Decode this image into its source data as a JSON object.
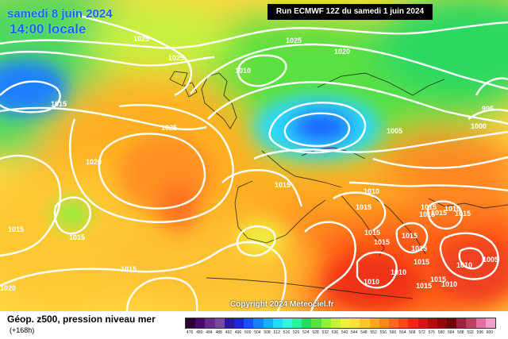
{
  "header": {
    "date": "samedi 8 juin 2024",
    "time": "14:00 locale",
    "run": "Run ECMWF 12Z du samedi 1 juin 2024"
  },
  "footer": {
    "copyright": "Copyright 2024 Meteociel.fr",
    "title": "Géop. z500, pression niveau mer",
    "subtitle": "(+168h)"
  },
  "isobar_labels": [
    "1025",
    "1025",
    "1020",
    "1025",
    "1015",
    "1010",
    "1025",
    "1020",
    "1015",
    "1005",
    "995",
    "1000",
    "1015",
    "1010",
    "1015",
    "1015",
    "1015",
    "1010",
    "1015",
    "1015",
    "1015",
    "1015",
    "1015",
    "1010",
    "1010",
    "1015",
    "1010",
    "1005",
    "1015",
    "1015",
    "1010",
    "1015",
    "1015",
    "1015",
    "1020"
  ],
  "legend": {
    "colors": [
      "#2a0030",
      "#4a0a6a",
      "#6a2a8a",
      "#7a4aa0",
      "#2a1a9a",
      "#1a2ad0",
      "#1a50ff",
      "#1a80ff",
      "#1ab0ff",
      "#2ad8ff",
      "#3af0e0",
      "#2af0a0",
      "#2ad860",
      "#5ae040",
      "#90f040",
      "#c8f040",
      "#f0f040",
      "#ffe040",
      "#ffc830",
      "#ffa820",
      "#ff8820",
      "#ff6820",
      "#ff4818",
      "#f02818",
      "#d01818",
      "#b01010",
      "#900808",
      "#700404",
      "#a02040",
      "#c04060",
      "#e070a0",
      "#f0a0c8"
    ],
    "ticks": [
      "476",
      "480",
      "484",
      "488",
      "492",
      "496",
      "500",
      "504",
      "508",
      "512",
      "516",
      "520",
      "524",
      "528",
      "532",
      "536",
      "540",
      "544",
      "548",
      "552",
      "556",
      "560",
      "564",
      "568",
      "572",
      "576",
      "580",
      "584",
      "588",
      "592",
      "596",
      "600"
    ]
  },
  "colors": {
    "title_blue": "#1565ff",
    "isobar": "#ffffff"
  }
}
